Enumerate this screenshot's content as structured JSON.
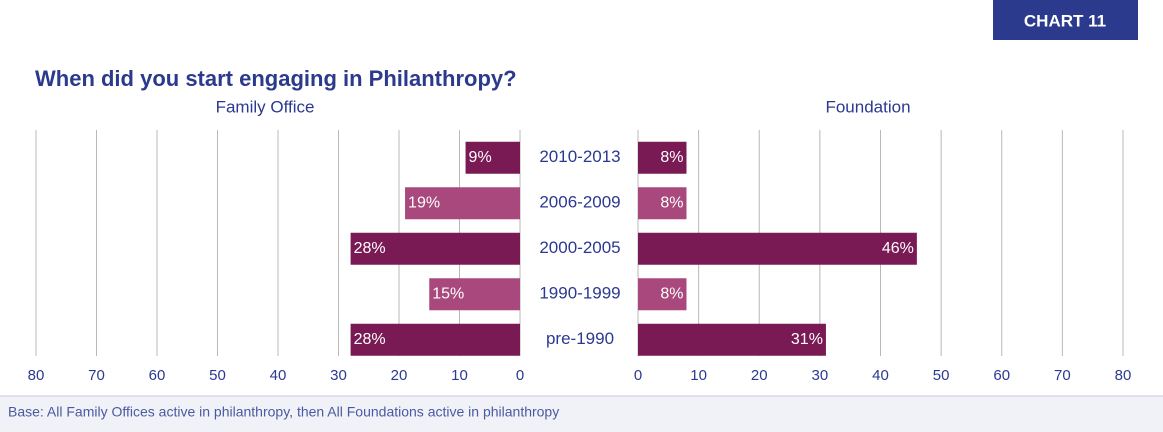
{
  "badge": "CHART 11",
  "title": "When did you start engaging in Philanthropy?",
  "footnote": "Base: All Family Offices active in philanthropy, then All Foundations active in philanthropy",
  "chart_data": {
    "type": "butterfly",
    "categories": [
      "2010-2013",
      "2006-2009",
      "2000-2005",
      "1990-1999",
      "pre-1990"
    ],
    "series": [
      {
        "name": "Family Office",
        "direction": "left",
        "values": [
          9,
          19,
          28,
          15,
          28
        ],
        "value_labels": [
          "9%",
          "19%",
          "28%",
          "15%",
          "28%"
        ],
        "colors": [
          "#7a1a55",
          "#a8487c",
          "#7a1a55",
          "#a8487c",
          "#7a1a55"
        ],
        "xlim": [
          0,
          80
        ],
        "xticks": [
          0,
          10,
          20,
          30,
          40,
          50,
          60,
          70,
          80
        ]
      },
      {
        "name": "Foundation",
        "direction": "right",
        "values": [
          8,
          8,
          46,
          8,
          31
        ],
        "value_labels": [
          "8%",
          "8%",
          "46%",
          "8%",
          "31%"
        ],
        "colors": [
          "#7a1a55",
          "#a8487c",
          "#7a1a55",
          "#a8487c",
          "#7a1a55"
        ],
        "xlim": [
          0,
          80
        ],
        "xticks": [
          0,
          10,
          20,
          30,
          40,
          50,
          60,
          70,
          80
        ]
      }
    ],
    "grid": true
  }
}
